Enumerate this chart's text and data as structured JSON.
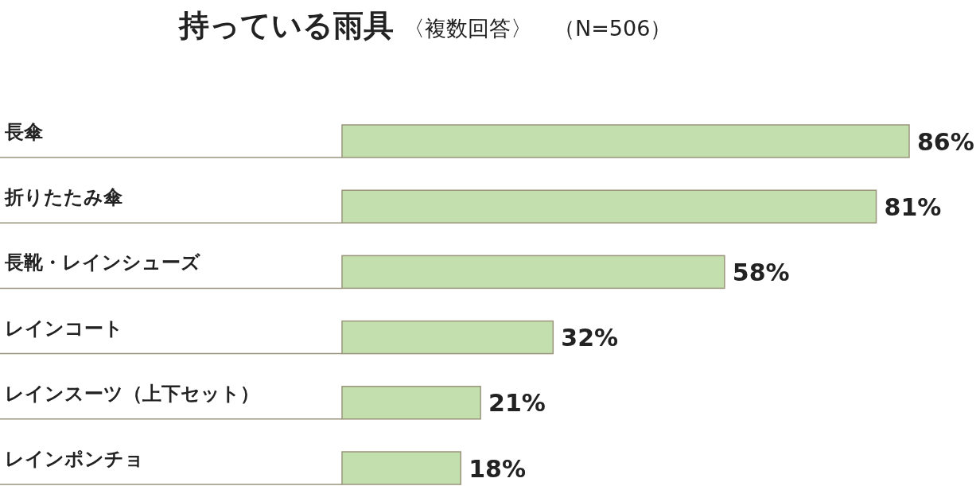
{
  "chart_data": {
    "type": "bar",
    "orientation": "horizontal",
    "title": "持っている雨具",
    "subtitle": "〈複数回答〉　（N=506）",
    "categories": [
      "長傘",
      "折りたたみ傘",
      "長靴・レインシューズ",
      "レインコート",
      "レインスーツ（上下セット）",
      "レインポンチョ"
    ],
    "values": [
      86,
      81,
      58,
      32,
      21,
      18
    ],
    "value_labels": [
      "86%",
      "81%",
      "58%",
      "32%",
      "21%",
      "18%"
    ],
    "color": "#c3dfae"
  }
}
